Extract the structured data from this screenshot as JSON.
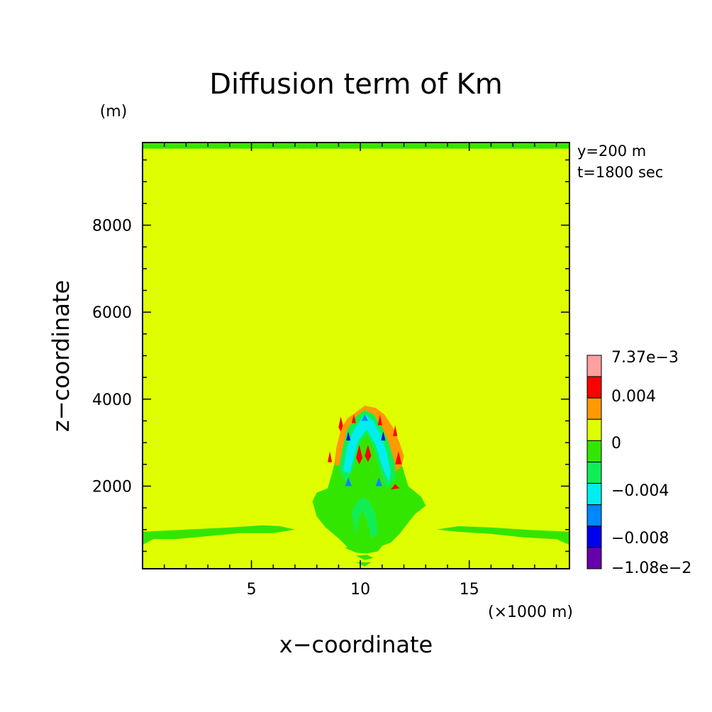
{
  "chart_data": {
    "type": "heatmap",
    "title": "Diffusion term of Km",
    "xlabel": "x−coordinate",
    "ylabel": "z−coordinate",
    "x_unit": "(×1000 m)",
    "y_unit": "(m)",
    "xlim": [
      0,
      19.6
    ],
    "ylim": [
      100,
      9900
    ],
    "x_ticks": [
      {
        "value": 5,
        "label": "5"
      },
      {
        "value": 10,
        "label": "10"
      },
      {
        "value": 15,
        "label": "15"
      }
    ],
    "y_ticks": [
      {
        "value": 2000,
        "label": "2000"
      },
      {
        "value": 4000,
        "label": "4000"
      },
      {
        "value": 6000,
        "label": "6000"
      },
      {
        "value": 8000,
        "label": "8000"
      }
    ],
    "annotations": [
      "y=200 m",
      "t=1800 sec"
    ],
    "background_color": "#dfff00",
    "colorbar": {
      "levels": [
        {
          "color": "#ff9f9f"
        },
        {
          "color": "#ff0000"
        },
        {
          "color": "#ff9900"
        },
        {
          "color": "#dfff00"
        },
        {
          "color": "#33e600"
        },
        {
          "color": "#11ee55"
        },
        {
          "color": "#00eeee"
        },
        {
          "color": "#0088ff"
        },
        {
          "color": "#0000ee"
        },
        {
          "color": "#6600aa"
        }
      ],
      "labels": [
        "7.37e−3",
        "0.004",
        "0",
        "−0.004",
        "−0.008",
        "−1.08e−2"
      ]
    },
    "regions": [
      {
        "color": "#33e600",
        "points": [
          [
            0,
            9880
          ],
          [
            19.6,
            9880
          ],
          [
            19.6,
            9760
          ],
          [
            0,
            9760
          ]
        ]
      },
      {
        "color": "#33e600",
        "points": [
          [
            0,
            650
          ],
          [
            0,
            950
          ],
          [
            2,
            1000
          ],
          [
            4,
            1050
          ],
          [
            5.5,
            1100
          ],
          [
            6.3,
            1080
          ],
          [
            7,
            1000
          ],
          [
            6,
            920
          ],
          [
            4.5,
            920
          ],
          [
            3,
            850
          ],
          [
            1.5,
            780
          ],
          [
            0.5,
            780
          ]
        ]
      },
      {
        "color": "#33e600",
        "points": [
          [
            13.5,
            1000
          ],
          [
            14.5,
            1080
          ],
          [
            16,
            1050
          ],
          [
            17.5,
            1000
          ],
          [
            19.6,
            950
          ],
          [
            19.6,
            650
          ],
          [
            19,
            780
          ],
          [
            17.5,
            820
          ],
          [
            16,
            900
          ],
          [
            14.5,
            950
          ]
        ]
      },
      {
        "color": "#33e600",
        "points": [
          [
            7.8,
            1650
          ],
          [
            8,
            1850
          ],
          [
            8.5,
            1950
          ],
          [
            8.7,
            2300
          ],
          [
            8.9,
            2700
          ],
          [
            9.1,
            3100
          ],
          [
            9.4,
            3400
          ],
          [
            9.8,
            3650
          ],
          [
            10.2,
            3800
          ],
          [
            10.6,
            3750
          ],
          [
            11,
            3550
          ],
          [
            11.3,
            3250
          ],
          [
            11.6,
            2900
          ],
          [
            11.9,
            2500
          ],
          [
            12.2,
            2000
          ],
          [
            12.8,
            1750
          ],
          [
            13,
            1550
          ],
          [
            12.5,
            1350
          ],
          [
            11.8,
            900
          ],
          [
            11.4,
            700
          ],
          [
            10.3,
            500
          ],
          [
            9.4,
            600
          ],
          [
            9,
            800
          ],
          [
            8.4,
            1050
          ],
          [
            8,
            1300
          ]
        ]
      },
      {
        "color": "#33e600",
        "points": [
          [
            9.3,
            580
          ],
          [
            9.8,
            470
          ],
          [
            10.3,
            450
          ],
          [
            10.8,
            500
          ],
          [
            11,
            620
          ],
          [
            10.3,
            650
          ],
          [
            9.6,
            650
          ]
        ]
      },
      {
        "color": "#33e600",
        "points": [
          [
            9.8,
            400
          ],
          [
            10.2,
            300
          ],
          [
            10.6,
            350
          ],
          [
            10.3,
            420
          ]
        ]
      },
      {
        "color": "#33e600",
        "points": [
          [
            9.8,
            250
          ],
          [
            10.2,
            150
          ],
          [
            10.5,
            250
          ]
        ]
      },
      {
        "color": "#ff9900",
        "points": [
          [
            8.8,
            2500
          ],
          [
            8.9,
            2900
          ],
          [
            9.1,
            3300
          ],
          [
            9.4,
            3550
          ],
          [
            9.8,
            3700
          ],
          [
            10.2,
            3850
          ],
          [
            10.7,
            3800
          ],
          [
            11.1,
            3650
          ],
          [
            11.5,
            3350
          ],
          [
            11.8,
            3000
          ],
          [
            12,
            2700
          ],
          [
            11.9,
            2450
          ],
          [
            11.5,
            2300
          ],
          [
            11.2,
            2700
          ],
          [
            11,
            3100
          ],
          [
            10.7,
            3450
          ],
          [
            10.3,
            3600
          ],
          [
            9.9,
            3450
          ],
          [
            9.6,
            3150
          ],
          [
            9.3,
            2750
          ],
          [
            9.1,
            2450
          ]
        ]
      },
      {
        "color": "#11ee55",
        "points": [
          [
            9,
            2400
          ],
          [
            9.2,
            2900
          ],
          [
            9.4,
            3300
          ],
          [
            9.8,
            3600
          ],
          [
            10.2,
            3750
          ],
          [
            10.6,
            3650
          ],
          [
            11,
            3350
          ],
          [
            11.3,
            3000
          ],
          [
            11.6,
            2500
          ],
          [
            11.6,
            2150
          ],
          [
            11.2,
            1950
          ],
          [
            10.9,
            2350
          ],
          [
            10.6,
            2900
          ],
          [
            10.3,
            3200
          ],
          [
            10,
            3000
          ],
          [
            9.8,
            2600
          ],
          [
            9.6,
            2300
          ],
          [
            9.3,
            2100
          ]
        ]
      },
      {
        "color": "#00eeee",
        "points": [
          [
            9.2,
            2350
          ],
          [
            9.4,
            2900
          ],
          [
            9.7,
            3300
          ],
          [
            10.2,
            3650
          ],
          [
            10.6,
            3500
          ],
          [
            10.9,
            3200
          ],
          [
            11.2,
            2800
          ],
          [
            11.4,
            2300
          ],
          [
            11.3,
            2100
          ],
          [
            11,
            2450
          ],
          [
            10.7,
            2950
          ],
          [
            10.3,
            3300
          ],
          [
            9.9,
            3050
          ],
          [
            9.7,
            2650
          ],
          [
            9.5,
            2300
          ]
        ]
      },
      {
        "color": "#11ee55",
        "points": [
          [
            9.6,
            1400
          ],
          [
            9.8,
            1600
          ],
          [
            10.1,
            1750
          ],
          [
            10.4,
            1650
          ],
          [
            10.7,
            1350
          ],
          [
            10.8,
            900
          ],
          [
            10.5,
            800
          ],
          [
            10.3,
            1200
          ],
          [
            10.1,
            1450
          ],
          [
            9.9,
            1200
          ],
          [
            9.8,
            850
          ]
        ]
      },
      {
        "color": "#ff0000",
        "points": [
          [
            9.0,
            3350
          ],
          [
            9.1,
            3600
          ],
          [
            9.2,
            3400
          ],
          [
            9.1,
            3250
          ]
        ]
      },
      {
        "color": "#ff0000",
        "points": [
          [
            9.6,
            3450
          ],
          [
            9.7,
            3650
          ],
          [
            9.8,
            3450
          ]
        ]
      },
      {
        "color": "#ff0000",
        "points": [
          [
            10.8,
            3400
          ],
          [
            10.9,
            3650
          ],
          [
            11.0,
            3400
          ]
        ]
      },
      {
        "color": "#ff0000",
        "points": [
          [
            11.5,
            3150
          ],
          [
            11.6,
            3400
          ],
          [
            11.7,
            3150
          ]
        ]
      },
      {
        "color": "#ff0000",
        "points": [
          [
            8.5,
            2550
          ],
          [
            8.6,
            2800
          ],
          [
            8.7,
            2550
          ]
        ]
      },
      {
        "color": "#ff0000",
        "points": [
          [
            11.6,
            2500
          ],
          [
            11.75,
            2800
          ],
          [
            11.9,
            2500
          ]
        ]
      },
      {
        "color": "#ff0000",
        "points": [
          [
            9.8,
            2650
          ],
          [
            9.95,
            2950
          ],
          [
            10.1,
            2650
          ],
          [
            9.95,
            2500
          ]
        ]
      },
      {
        "color": "#ff0000",
        "points": [
          [
            10.2,
            2700
          ],
          [
            10.35,
            2950
          ],
          [
            10.5,
            2700
          ],
          [
            10.35,
            2550
          ]
        ]
      },
      {
        "color": "#ff0000",
        "points": [
          [
            11.4,
            1920
          ],
          [
            11.6,
            2050
          ],
          [
            11.8,
            1950
          ]
        ]
      },
      {
        "color": "#0000ee",
        "points": [
          [
            9.35,
            3050
          ],
          [
            9.45,
            3250
          ],
          [
            9.55,
            3050
          ]
        ]
      },
      {
        "color": "#0000ee",
        "points": [
          [
            10.95,
            3050
          ],
          [
            11.05,
            3250
          ],
          [
            11.15,
            3050
          ]
        ]
      },
      {
        "color": "#0088ff",
        "points": [
          [
            9.3,
            2000
          ],
          [
            9.45,
            2200
          ],
          [
            9.6,
            2000
          ]
        ]
      },
      {
        "color": "#0088ff",
        "points": [
          [
            10.7,
            2000
          ],
          [
            10.85,
            2200
          ],
          [
            11.0,
            2000
          ]
        ]
      },
      {
        "color": "#0088ff",
        "points": [
          [
            10.05,
            3500
          ],
          [
            10.2,
            3650
          ],
          [
            10.35,
            3500
          ]
        ]
      }
    ]
  }
}
